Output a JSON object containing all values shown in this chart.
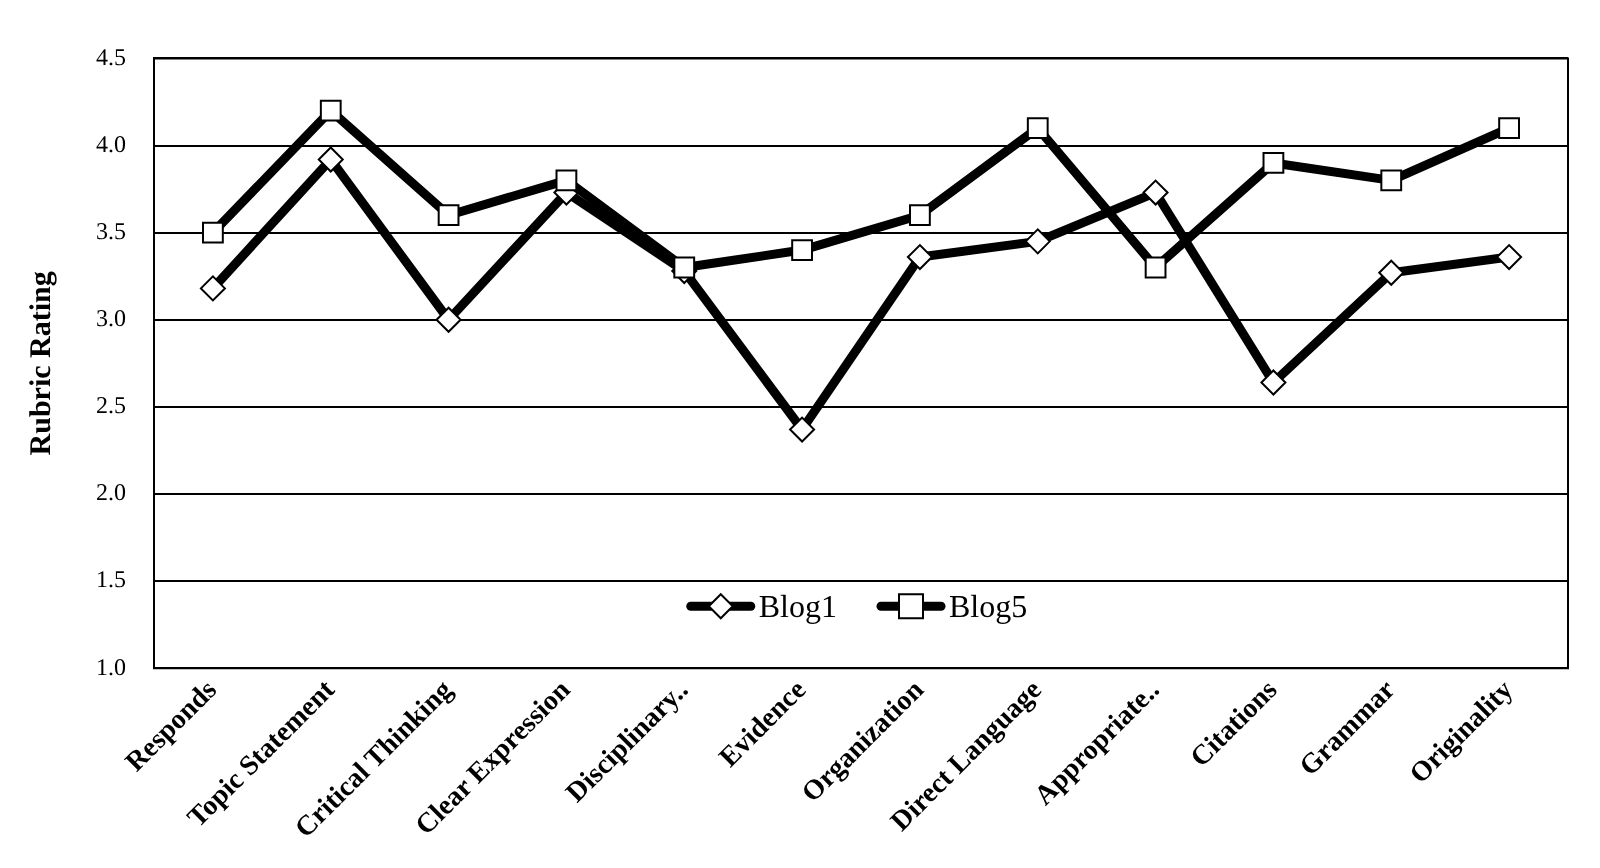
{
  "chart_data": {
    "type": "line",
    "ylabel": "Rubric Rating",
    "categories": [
      "Responds",
      "Topic Statement",
      "Critical Thinking",
      "Clear Expression",
      "Disciplinary..",
      "Evidence",
      "Organization",
      "Direct Language",
      "Appropriate..",
      "Citations",
      "Grammar",
      "Originality"
    ],
    "series": [
      {
        "name": "Blog1",
        "color": "#000000",
        "marker": "diamond",
        "values": [
          3.18,
          3.92,
          3.0,
          3.73,
          3.28,
          2.37,
          3.36,
          3.45,
          3.73,
          2.64,
          3.27,
          3.36
        ]
      },
      {
        "name": "Blog5",
        "color": "#000000",
        "marker": "square",
        "values": [
          3.5,
          4.2,
          3.6,
          3.8,
          3.3,
          3.4,
          3.6,
          4.1,
          3.3,
          3.9,
          3.8,
          4.1
        ]
      }
    ],
    "ylim": [
      1.0,
      4.5
    ],
    "yticks": [
      {
        "value": 1,
        "label": "1.0"
      },
      {
        "value": 1.5,
        "label": "1.5"
      },
      {
        "value": 2,
        "label": "2.0"
      },
      {
        "value": 2.5,
        "label": "2.5"
      },
      {
        "value": 3,
        "label": "3.0"
      },
      {
        "value": 3.5,
        "label": "3.5"
      },
      {
        "value": 4,
        "label": "4.0"
      },
      {
        "value": 4.5,
        "label": "4.5"
      }
    ],
    "grid": "y",
    "legend": "bottom",
    "line_style": "solid"
  }
}
